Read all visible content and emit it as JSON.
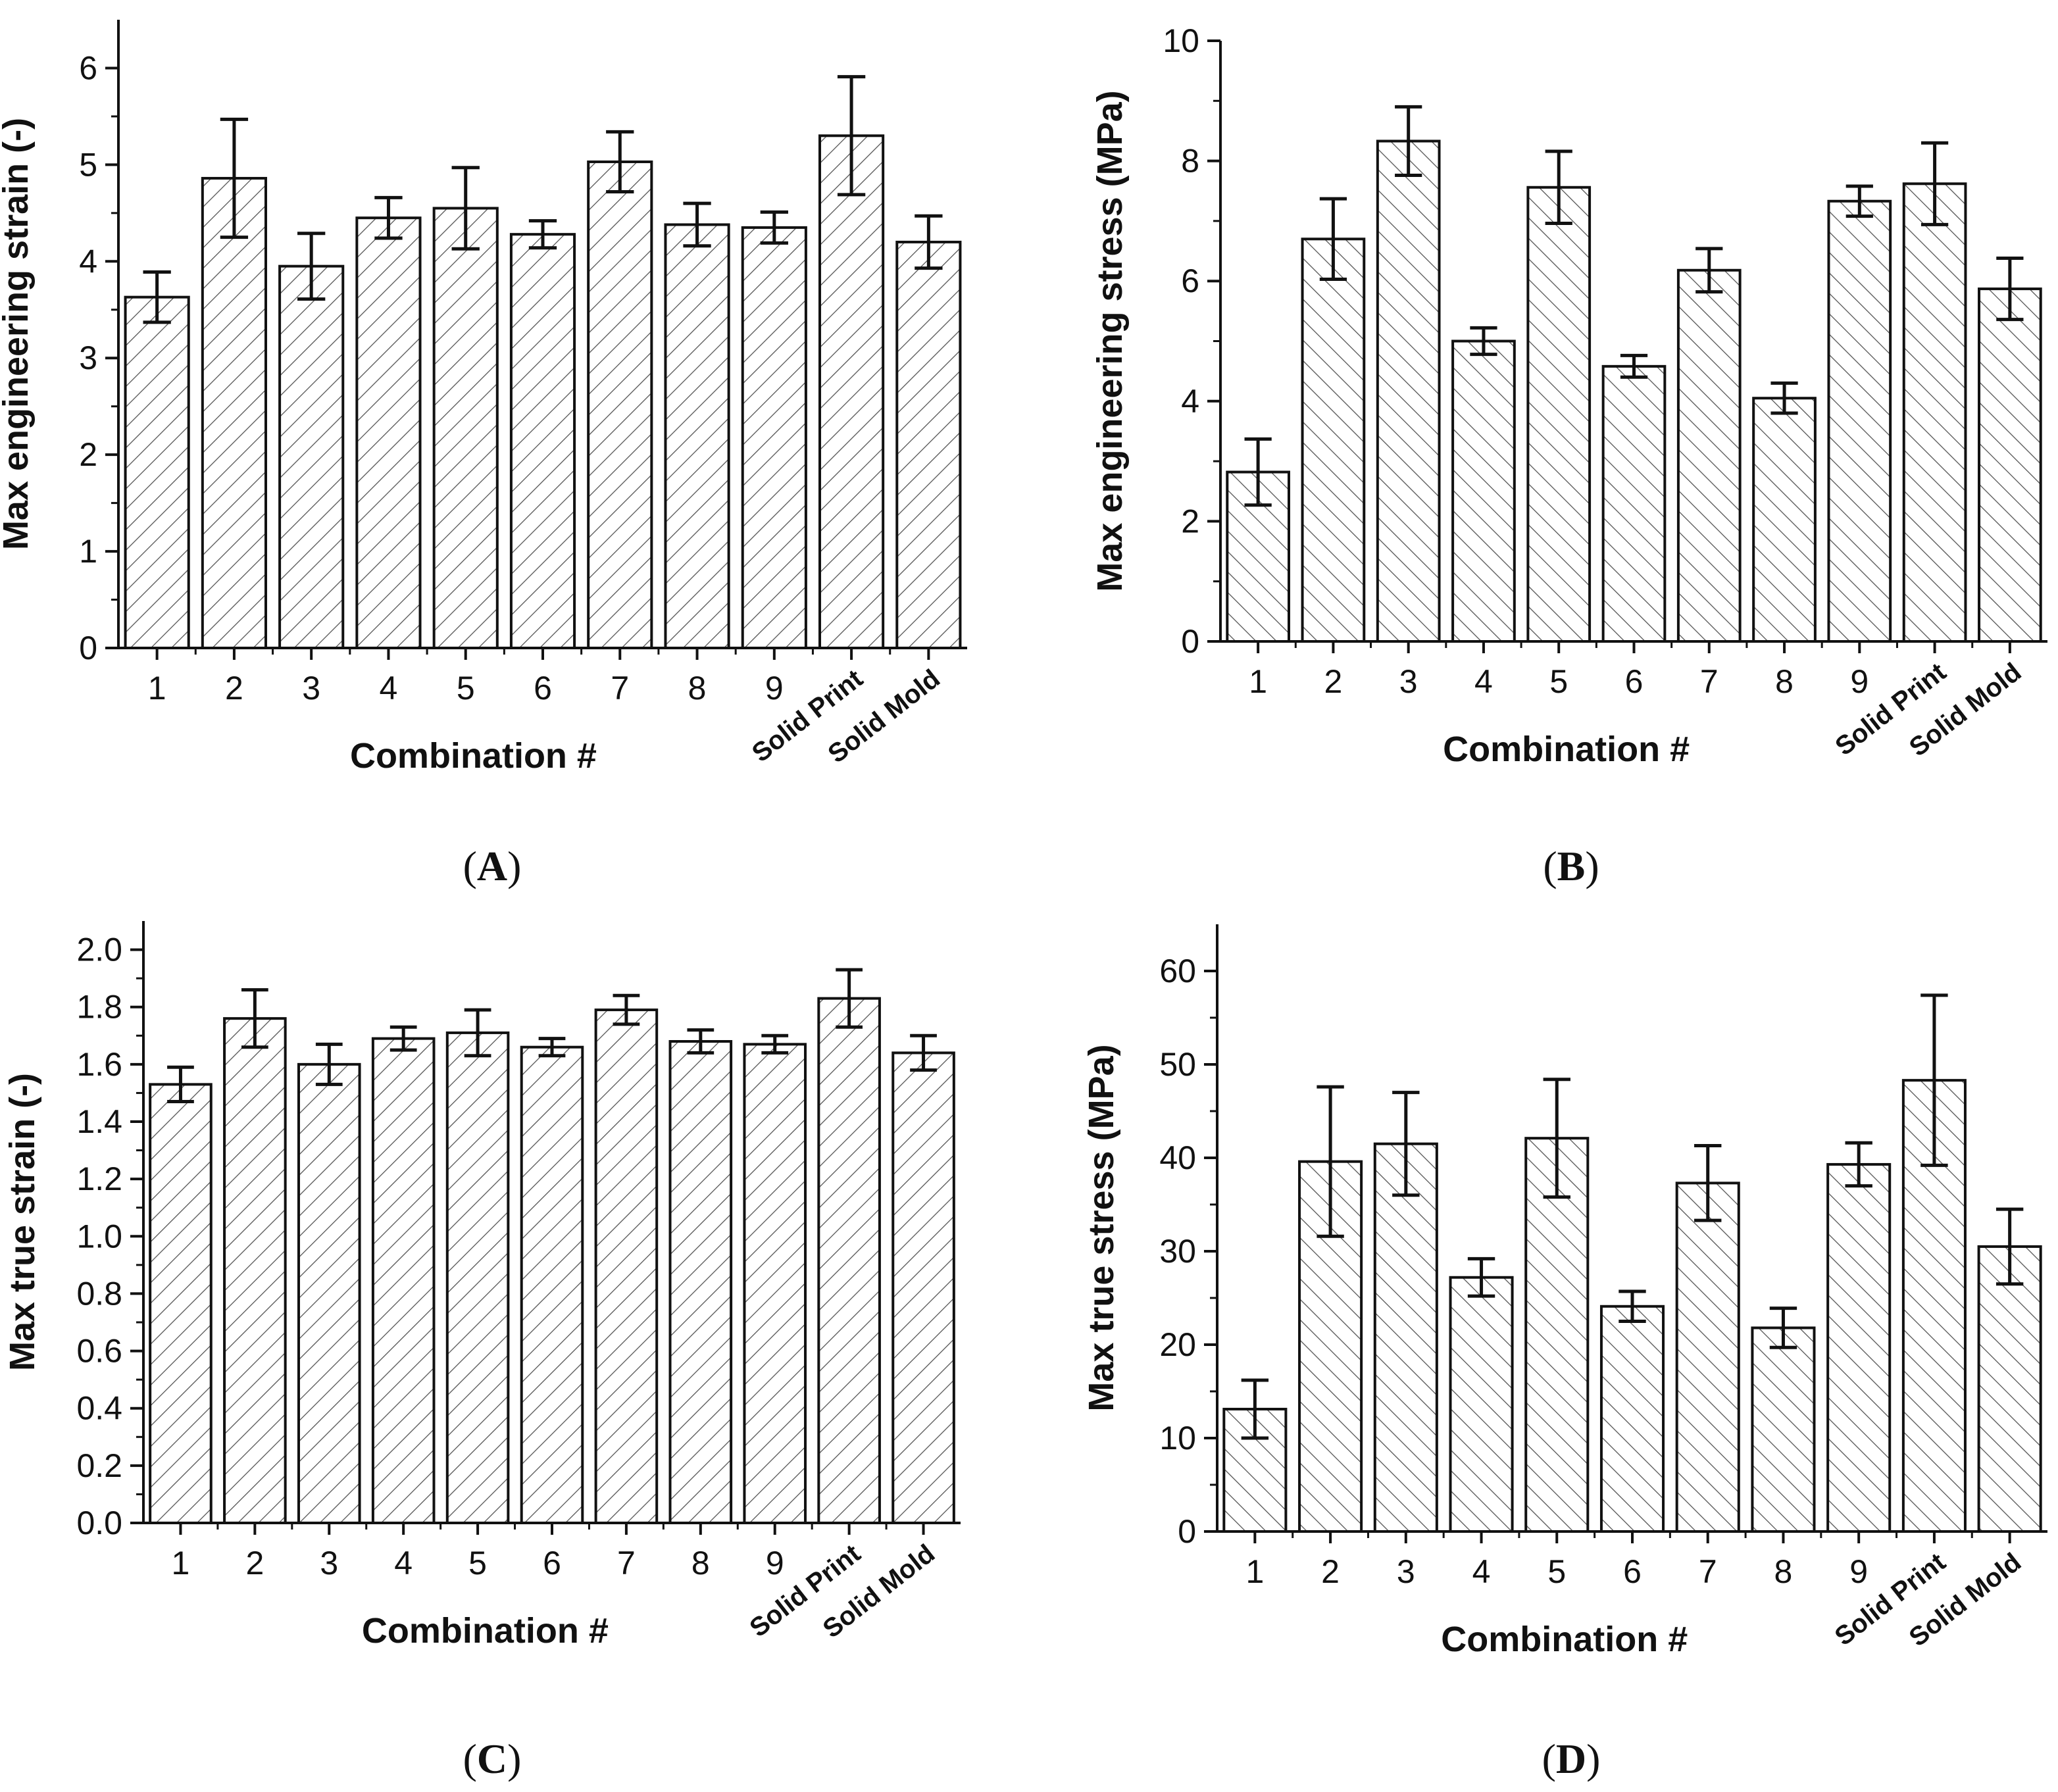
{
  "chart_data": [
    {
      "type": "bar",
      "panel_label": "A",
      "ylabel": "Max engineering strain (-)",
      "xlabel": "Combination #",
      "categories": [
        "1",
        "2",
        "3",
        "4",
        "5",
        "6",
        "7",
        "8",
        "9",
        "Solid Print",
        "Solid Mold"
      ],
      "values": [
        3.63,
        4.86,
        3.95,
        4.45,
        4.55,
        4.28,
        5.03,
        4.38,
        4.35,
        5.3,
        4.2
      ],
      "errors": [
        0.26,
        0.61,
        0.34,
        0.21,
        0.42,
        0.14,
        0.31,
        0.22,
        0.16,
        0.61,
        0.27
      ],
      "ylim": [
        0,
        6.5
      ],
      "yticks": [
        0,
        1,
        2,
        3,
        4,
        5,
        6
      ],
      "hatch": "forward"
    },
    {
      "type": "bar",
      "panel_label": "B",
      "ylabel": "Max engineering stress (MPa)",
      "xlabel": "Combination #",
      "categories": [
        "1",
        "2",
        "3",
        "4",
        "5",
        "6",
        "7",
        "8",
        "9",
        "Solid Print",
        "Solid Mold"
      ],
      "values": [
        2.82,
        6.7,
        8.33,
        5.0,
        7.56,
        4.58,
        6.18,
        4.05,
        7.33,
        7.62,
        5.87
      ],
      "errors": [
        0.55,
        0.67,
        0.57,
        0.22,
        0.6,
        0.18,
        0.36,
        0.25,
        0.25,
        0.68,
        0.51
      ],
      "ylim": [
        0,
        10
      ],
      "yticks": [
        0,
        2,
        4,
        6,
        8,
        10
      ],
      "hatch": "backward"
    },
    {
      "type": "bar",
      "panel_label": "C",
      "ylabel": "Max true strain (-)",
      "xlabel": "Combination #",
      "categories": [
        "1",
        "2",
        "3",
        "4",
        "5",
        "6",
        "7",
        "8",
        "9",
        "Solid Print",
        "Solid Mold"
      ],
      "values": [
        1.53,
        1.76,
        1.6,
        1.69,
        1.71,
        1.66,
        1.79,
        1.68,
        1.67,
        1.83,
        1.64
      ],
      "errors": [
        0.06,
        0.1,
        0.07,
        0.04,
        0.08,
        0.03,
        0.05,
        0.04,
        0.03,
        0.1,
        0.06
      ],
      "ylim": [
        0,
        2.1
      ],
      "yticks": [
        0.0,
        0.2,
        0.4,
        0.6,
        0.8,
        1.0,
        1.2,
        1.4,
        1.6,
        1.8,
        2.0
      ],
      "hatch": "forward"
    },
    {
      "type": "bar",
      "panel_label": "D",
      "ylabel": "Max true stress (MPa)",
      "xlabel": "Combination #",
      "categories": [
        "1",
        "2",
        "3",
        "4",
        "5",
        "6",
        "7",
        "8",
        "9",
        "Solid Print",
        "Solid Mold"
      ],
      "values": [
        13.1,
        39.6,
        41.5,
        27.2,
        42.1,
        24.1,
        37.3,
        21.8,
        39.3,
        48.3,
        30.5
      ],
      "errors": [
        3.1,
        8.0,
        5.5,
        2.0,
        6.3,
        1.6,
        4.0,
        2.1,
        2.3,
        9.1,
        4.0
      ],
      "ylim": [
        0,
        65
      ],
      "yticks": [
        0,
        10,
        20,
        30,
        40,
        50,
        60
      ],
      "hatch": "backward"
    }
  ]
}
